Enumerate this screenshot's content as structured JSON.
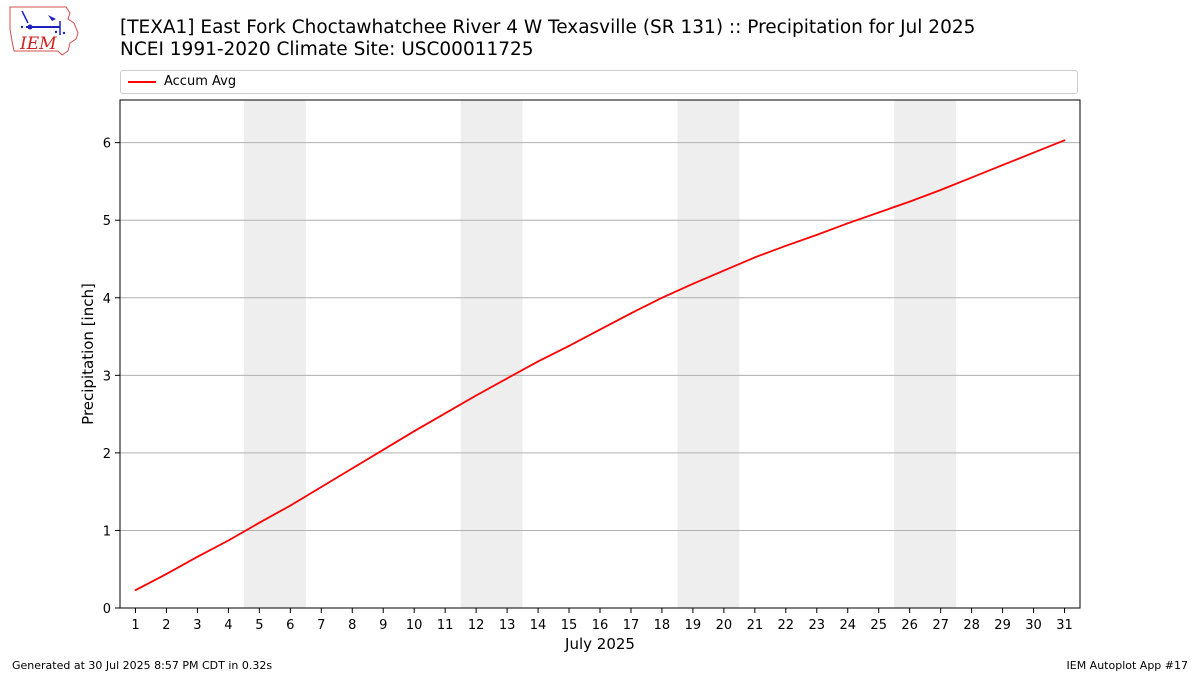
{
  "header": {
    "title_line1": "[TEXA1] East Fork Choctawhatchee River 4 W Texasville (SR 131) :: Precipitation for Jul 2025",
    "title_line2": "NCEI 1991-2020 Climate Site: USC00011725",
    "logo_text": "IEM"
  },
  "legend": {
    "label": "Accum Avg",
    "placement": "top"
  },
  "footer": {
    "generated": "Generated at 30 Jul 2025 8:57 PM CDT in 0.32s",
    "app": "IEM Autoplot App #17"
  },
  "colors": {
    "line": "#ff0000",
    "weekend_shade": "#eeeeee",
    "grid": "#b0b0b0"
  },
  "chart_data": {
    "type": "line",
    "title": "[TEXA1] East Fork Choctawhatchee River 4 W Texasville (SR 131) :: Precipitation for Jul 2025",
    "subtitle": "NCEI 1991-2020 Climate Site: USC00011725",
    "xlabel": "July 2025",
    "ylabel": "Precipitation [inch]",
    "xlim": [
      0.5,
      31.5
    ],
    "ylim": [
      0,
      6.55
    ],
    "grid": "y",
    "x_ticks": [
      1,
      2,
      3,
      4,
      5,
      6,
      7,
      8,
      9,
      10,
      11,
      12,
      13,
      14,
      15,
      16,
      17,
      18,
      19,
      20,
      21,
      22,
      23,
      24,
      25,
      26,
      27,
      28,
      29,
      30,
      31
    ],
    "y_ticks": [
      0,
      1,
      2,
      3,
      4,
      5,
      6
    ],
    "shaded_ranges": [
      [
        4.5,
        6.5
      ],
      [
        11.5,
        13.5
      ],
      [
        18.5,
        20.5
      ],
      [
        25.5,
        27.5
      ]
    ],
    "series": [
      {
        "name": "Accum Avg",
        "x": [
          1,
          2,
          3,
          4,
          5,
          6,
          7,
          8,
          9,
          10,
          11,
          12,
          13,
          14,
          15,
          16,
          17,
          18,
          19,
          20,
          21,
          22,
          23,
          24,
          25,
          26,
          27,
          28,
          29,
          30,
          31
        ],
        "y": [
          0.23,
          0.44,
          0.66,
          0.87,
          1.1,
          1.32,
          1.56,
          1.8,
          2.04,
          2.28,
          2.51,
          2.74,
          2.96,
          3.18,
          3.38,
          3.59,
          3.8,
          4.0,
          4.18,
          4.35,
          4.52,
          4.67,
          4.81,
          4.96,
          5.1,
          5.24,
          5.39,
          5.55,
          5.71,
          5.87,
          6.03
        ]
      }
    ]
  }
}
